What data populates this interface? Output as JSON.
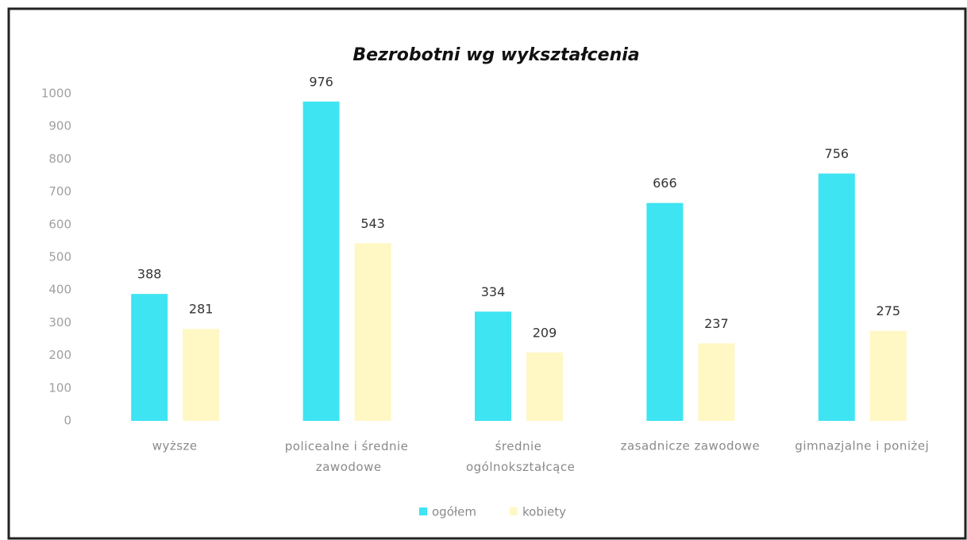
{
  "chart_data": {
    "type": "bar",
    "title": "Bezrobotni wg wykształcenia",
    "categories": [
      "wyższe",
      "policealne i średnie zawodowe",
      "średnie ogólnokształcące",
      "zasadnicze zawodowe",
      "gimnazjalne i poniżej"
    ],
    "series": [
      {
        "name": "ogółem",
        "color": "#3ee4f2",
        "values": [
          388,
          976,
          334,
          666,
          756
        ]
      },
      {
        "name": "kobiety",
        "color": "#fff7c4",
        "values": [
          281,
          543,
          209,
          237,
          275
        ]
      }
    ],
    "ylim": [
      0,
      1000
    ],
    "yticks": [
      0,
      100,
      200,
      300,
      400,
      500,
      600,
      700,
      800,
      900,
      1000
    ],
    "grid": false,
    "legend": "bottom"
  }
}
